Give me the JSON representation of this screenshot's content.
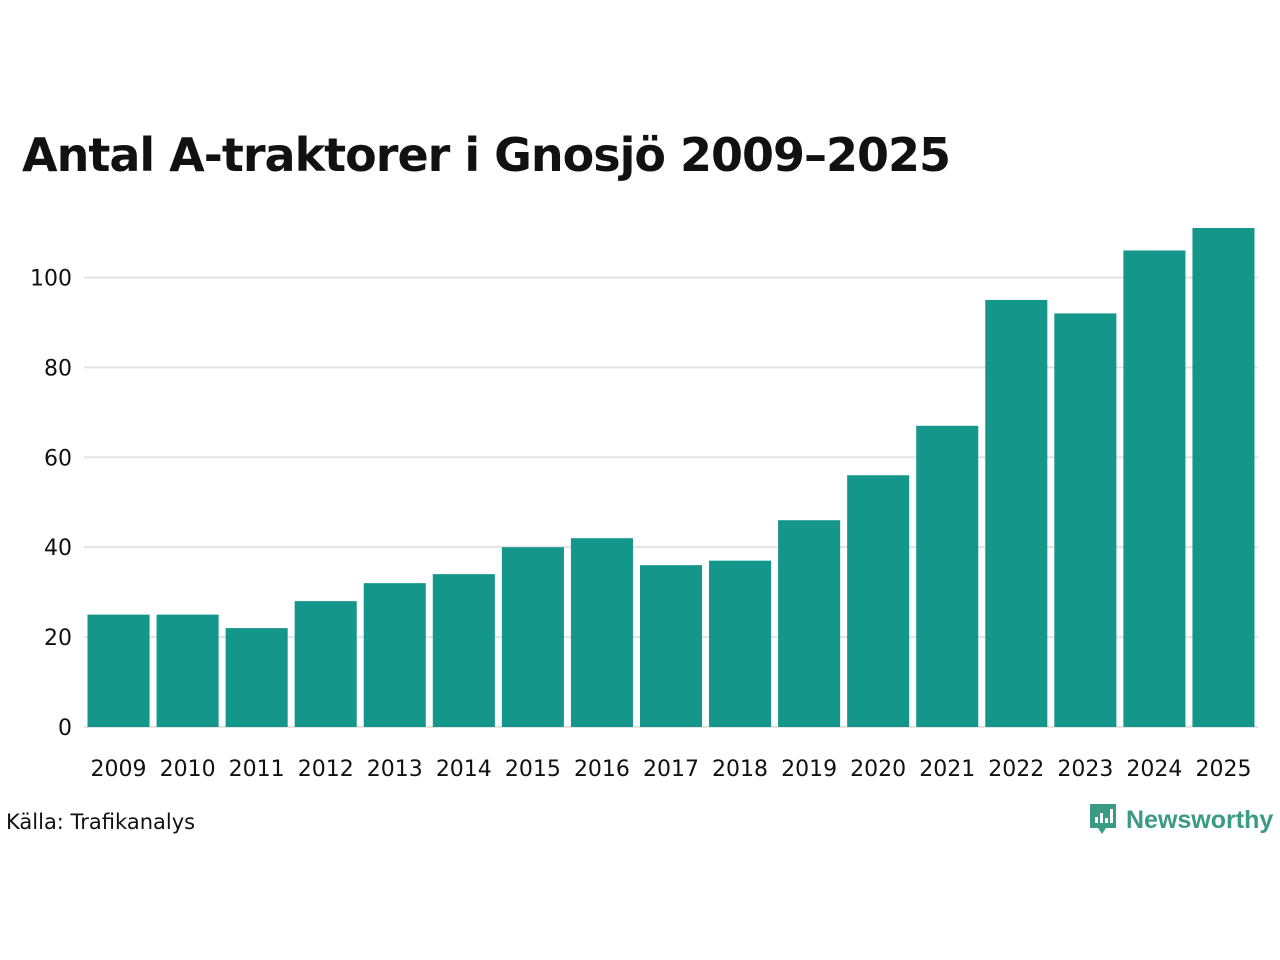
{
  "chart_data": {
    "type": "bar",
    "title": "Antal A-traktorer i Gnosjö 2009–2025",
    "categories": [
      "2009",
      "2010",
      "2011",
      "2012",
      "2013",
      "2014",
      "2015",
      "2016",
      "2017",
      "2018",
      "2019",
      "2020",
      "2021",
      "2022",
      "2023",
      "2024",
      "2025"
    ],
    "values": [
      25,
      25,
      22,
      28,
      32,
      34,
      40,
      42,
      36,
      37,
      46,
      56,
      67,
      95,
      92,
      106,
      111
    ],
    "yticks": [
      0,
      20,
      40,
      60,
      80,
      100
    ],
    "ylim": [
      0,
      111
    ],
    "xlabel": "",
    "ylabel": "",
    "grid": true,
    "bar_color": "#14968a"
  },
  "source": "Källa: Trafikanalys",
  "brand": {
    "name": "Newsworthy",
    "icon": "newsworthy-logo-icon",
    "color": "#3a9a84"
  }
}
